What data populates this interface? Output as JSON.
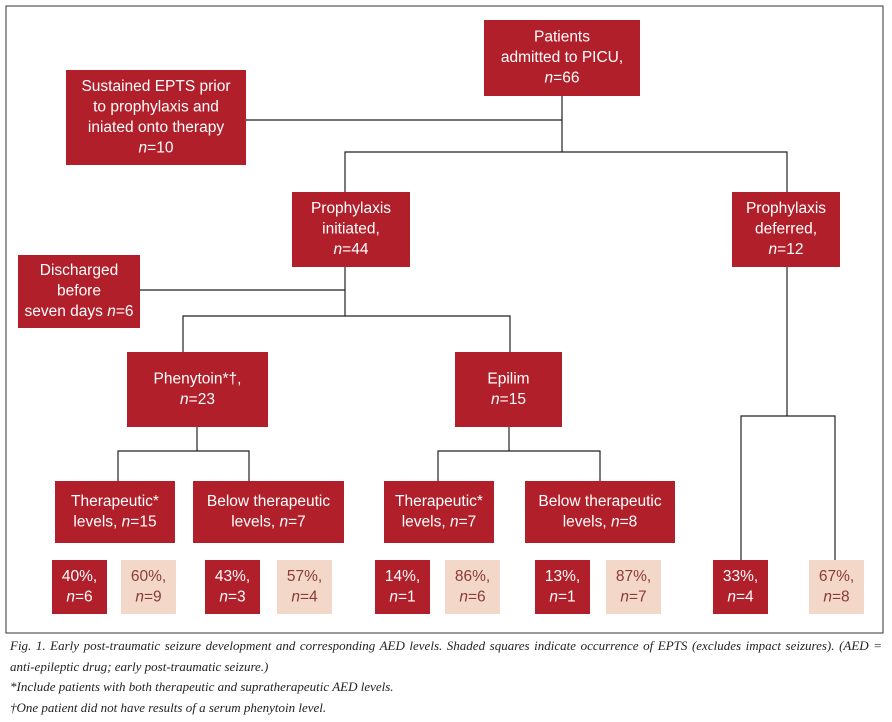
{
  "nodes": [
    {
      "lines": [
        "Patients",
        "admitted to PICU,",
        "n=66"
      ]
    },
    {
      "lines": [
        "Sustained EPTS prior",
        "to prophylaxis and",
        "iniated onto therapy",
        "n=10"
      ]
    },
    {
      "lines": [
        "Prophylaxis",
        "initiated,",
        "n=44"
      ]
    },
    {
      "lines": [
        "Prophylaxis",
        "deferred,",
        "n=12"
      ]
    },
    {
      "lines": [
        "Discharged",
        "before",
        "seven days n=6"
      ]
    },
    {
      "lines": [
        "Phenytoin*†,",
        "n=23"
      ]
    },
    {
      "lines": [
        "Epilim",
        "n=15"
      ]
    },
    {
      "lines": [
        "Therapeutic*",
        "levels, n=15"
      ]
    },
    {
      "lines": [
        "Below therapeutic",
        "levels, n=7"
      ]
    },
    {
      "lines": [
        "Therapeutic*",
        "levels, n=7"
      ]
    },
    {
      "lines": [
        "Below therapeutic",
        "levels, n=8"
      ]
    }
  ],
  "outcomes": [
    {
      "lines": [
        "40%,",
        "n=6"
      ]
    },
    {
      "lines": [
        "60%,",
        "n=9"
      ]
    },
    {
      "lines": [
        "43%,",
        "n=3"
      ]
    },
    {
      "lines": [
        "57%,",
        "n=4"
      ]
    },
    {
      "lines": [
        "14%,",
        "n=1"
      ]
    },
    {
      "lines": [
        "86%,",
        "n=6"
      ]
    },
    {
      "lines": [
        "13%,",
        "n=1"
      ]
    },
    {
      "lines": [
        "87%,",
        "n=7"
      ]
    },
    {
      "lines": [
        "33%,",
        "n=4"
      ]
    },
    {
      "lines": [
        "67%,",
        "n=8"
      ]
    }
  ],
  "caption": {
    "figure": "Fig. 1. Early post-traumatic seizure development and corresponding AED levels. Shaded squares indicate occurrence of EPTS (excludes impact seizures). (AED = anti-epileptic drug; early post-traumatic seizure.)",
    "notes": [
      "*Include patients with both therapeutic and supratherapeutic AED levels.",
      "†One patient did not have results of a serum phenytoin level."
    ]
  }
}
